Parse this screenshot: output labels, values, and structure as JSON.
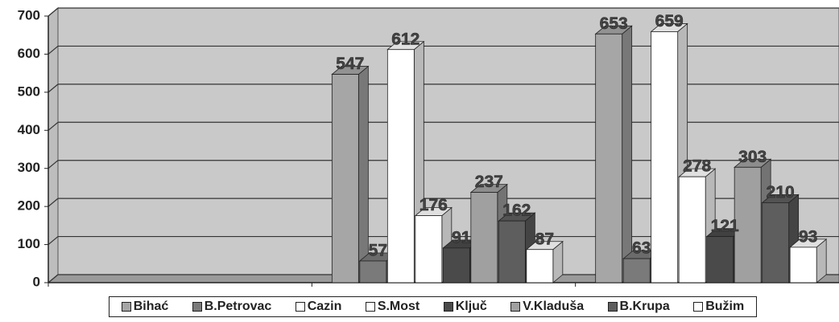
{
  "chart_data": {
    "type": "bar3d",
    "categories": [
      null,
      null,
      null
    ],
    "series": [
      {
        "name": "Bihać",
        "color": "#a6a6a6",
        "values": [
          null,
          547,
          653
        ]
      },
      {
        "name": "B.Petrovac",
        "color": "#7a7a7a",
        "values": [
          null,
          57,
          63
        ]
      },
      {
        "name": "Cazin",
        "color": "#ffffff",
        "values": [
          null,
          612,
          659
        ]
      },
      {
        "name": "S.Most",
        "color": "#ffffff",
        "values": [
          null,
          176,
          278
        ]
      },
      {
        "name": "Ključ",
        "color": "#4a4a4a",
        "values": [
          null,
          91,
          121
        ]
      },
      {
        "name": "V.Kladuša",
        "color": "#a0a0a0",
        "values": [
          null,
          237,
          303
        ]
      },
      {
        "name": "B.Krupa",
        "color": "#5e5e5e",
        "values": [
          null,
          162,
          210
        ]
      },
      {
        "name": "Bužim",
        "color": "#ffffff",
        "values": [
          null,
          87,
          93
        ]
      }
    ],
    "ylim": [
      0,
      700
    ],
    "yticks": [
      0,
      100,
      200,
      300,
      400,
      500,
      600,
      700
    ],
    "grid": true,
    "legend": "bottom"
  }
}
